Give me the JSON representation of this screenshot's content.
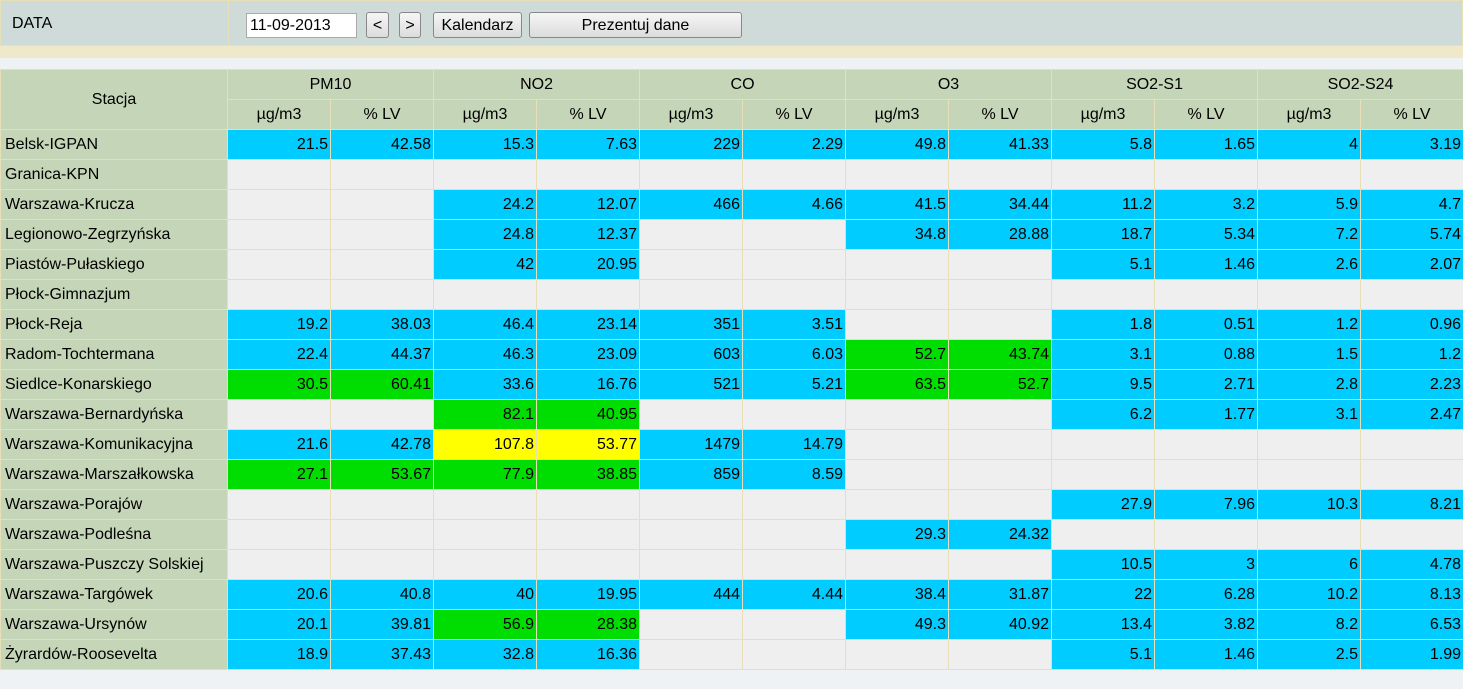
{
  "toolbar": {
    "label": "DATA",
    "date": "11-09-2013",
    "prev": "<",
    "next": ">",
    "calendar": "Kalendarz",
    "submit": "Prezentuj dane"
  },
  "table": {
    "station_header": "Stacja",
    "pollutants": [
      "PM10",
      "NO2",
      "CO",
      "O3",
      "SO2-S1",
      "SO2-S24"
    ],
    "units": [
      "µg/m3",
      "% LV"
    ],
    "rows": [
      {
        "station": "Belsk-IGPAN",
        "values": [
          21.5,
          42.58,
          15.3,
          7.63,
          229,
          2.29,
          49.8,
          41.33,
          5.8,
          1.65,
          4,
          3.19
        ],
        "colors": [
          "#00ccff",
          "#00ccff",
          "#00ccff",
          "#00ccff",
          "#00ccff",
          "#00ccff"
        ]
      },
      {
        "station": "Granica-KPN",
        "values": [
          null,
          null,
          null,
          null,
          null,
          null,
          null,
          null,
          null,
          null,
          null,
          null
        ],
        "colors": [
          null,
          null,
          null,
          null,
          null,
          null
        ]
      },
      {
        "station": "Warszawa-Krucza",
        "values": [
          null,
          null,
          24.2,
          12.07,
          466,
          4.66,
          41.5,
          34.44,
          11.2,
          3.2,
          5.9,
          4.7
        ],
        "colors": [
          null,
          "#00ccff",
          "#00ccff",
          "#00ccff",
          "#00ccff",
          "#00ccff"
        ]
      },
      {
        "station": "Legionowo-Zegrzyńska",
        "values": [
          null,
          null,
          24.8,
          12.37,
          null,
          null,
          34.8,
          28.88,
          18.7,
          5.34,
          7.2,
          5.74
        ],
        "colors": [
          null,
          "#00ccff",
          null,
          "#00ccff",
          "#00ccff",
          "#00ccff"
        ]
      },
      {
        "station": "Piastów-Pułaskiego",
        "values": [
          null,
          null,
          42,
          20.95,
          null,
          null,
          null,
          null,
          5.1,
          1.46,
          2.6,
          2.07
        ],
        "colors": [
          null,
          "#00ccff",
          null,
          null,
          "#00ccff",
          "#00ccff"
        ]
      },
      {
        "station": "Płock-Gimnazjum",
        "values": [
          null,
          null,
          null,
          null,
          null,
          null,
          null,
          null,
          null,
          null,
          null,
          null
        ],
        "colors": [
          null,
          null,
          null,
          null,
          null,
          null
        ]
      },
      {
        "station": "Płock-Reja",
        "values": [
          19.2,
          38.03,
          46.4,
          23.14,
          351,
          3.51,
          null,
          null,
          1.8,
          0.51,
          1.2,
          0.96
        ],
        "colors": [
          "#00ccff",
          "#00ccff",
          "#00ccff",
          null,
          "#00ccff",
          "#00ccff"
        ]
      },
      {
        "station": "Radom-Tochtermana",
        "values": [
          22.4,
          44.37,
          46.3,
          23.09,
          603,
          6.03,
          52.7,
          43.74,
          3.1,
          0.88,
          1.5,
          1.2
        ],
        "colors": [
          "#00ccff",
          "#00ccff",
          "#00ccff",
          "#00dd00",
          "#00ccff",
          "#00ccff"
        ]
      },
      {
        "station": "Siedlce-Konarskiego",
        "values": [
          30.5,
          60.41,
          33.6,
          16.76,
          521,
          5.21,
          63.5,
          52.7,
          9.5,
          2.71,
          2.8,
          2.23
        ],
        "colors": [
          "#00dd00",
          "#00ccff",
          "#00ccff",
          "#00dd00",
          "#00ccff",
          "#00ccff"
        ]
      },
      {
        "station": "Warszawa-Bernardyńska",
        "values": [
          null,
          null,
          82.1,
          40.95,
          null,
          null,
          null,
          null,
          6.2,
          1.77,
          3.1,
          2.47
        ],
        "colors": [
          null,
          "#00dd00",
          null,
          null,
          "#00ccff",
          "#00ccff"
        ]
      },
      {
        "station": "Warszawa-Komunikacyjna",
        "values": [
          21.6,
          42.78,
          107.8,
          53.77,
          1479,
          14.79,
          null,
          null,
          null,
          null,
          null,
          null
        ],
        "colors": [
          "#00ccff",
          "#ffff00",
          "#00ccff",
          null,
          null,
          null
        ]
      },
      {
        "station": "Warszawa-Marszałkowska",
        "values": [
          27.1,
          53.67,
          77.9,
          38.85,
          859,
          8.59,
          null,
          null,
          null,
          null,
          null,
          null
        ],
        "colors": [
          "#00dd00",
          "#00dd00",
          "#00ccff",
          null,
          null,
          null
        ]
      },
      {
        "station": "Warszawa-Porajów",
        "values": [
          null,
          null,
          null,
          null,
          null,
          null,
          null,
          null,
          27.9,
          7.96,
          10.3,
          8.21
        ],
        "colors": [
          null,
          null,
          null,
          null,
          "#00ccff",
          "#00ccff"
        ]
      },
      {
        "station": "Warszawa-Podleśna",
        "values": [
          null,
          null,
          null,
          null,
          null,
          null,
          29.3,
          24.32,
          null,
          null,
          null,
          null
        ],
        "colors": [
          null,
          null,
          null,
          "#00ccff",
          null,
          null
        ]
      },
      {
        "station": "Warszawa-Puszczy Solskiej",
        "values": [
          null,
          null,
          null,
          null,
          null,
          null,
          null,
          null,
          10.5,
          3,
          6,
          4.78
        ],
        "colors": [
          null,
          null,
          null,
          null,
          "#00ccff",
          "#00ccff"
        ]
      },
      {
        "station": "Warszawa-Targówek",
        "values": [
          20.6,
          40.8,
          40,
          19.95,
          444,
          4.44,
          38.4,
          31.87,
          22,
          6.28,
          10.2,
          8.13
        ],
        "colors": [
          "#00ccff",
          "#00ccff",
          "#00ccff",
          "#00ccff",
          "#00ccff",
          "#00ccff"
        ]
      },
      {
        "station": "Warszawa-Ursynów",
        "values": [
          20.1,
          39.81,
          56.9,
          28.38,
          null,
          null,
          49.3,
          40.92,
          13.4,
          3.82,
          8.2,
          6.53
        ],
        "colors": [
          "#00ccff",
          "#00dd00",
          null,
          "#00ccff",
          "#00ccff",
          "#00ccff"
        ]
      },
      {
        "station": "Żyrardów-Roosevelta",
        "values": [
          18.9,
          37.43,
          32.8,
          16.36,
          null,
          null,
          null,
          null,
          5.1,
          1.46,
          2.5,
          1.99
        ],
        "colors": [
          "#00ccff",
          "#00ccff",
          null,
          null,
          "#00ccff",
          "#00ccff"
        ]
      }
    ]
  }
}
